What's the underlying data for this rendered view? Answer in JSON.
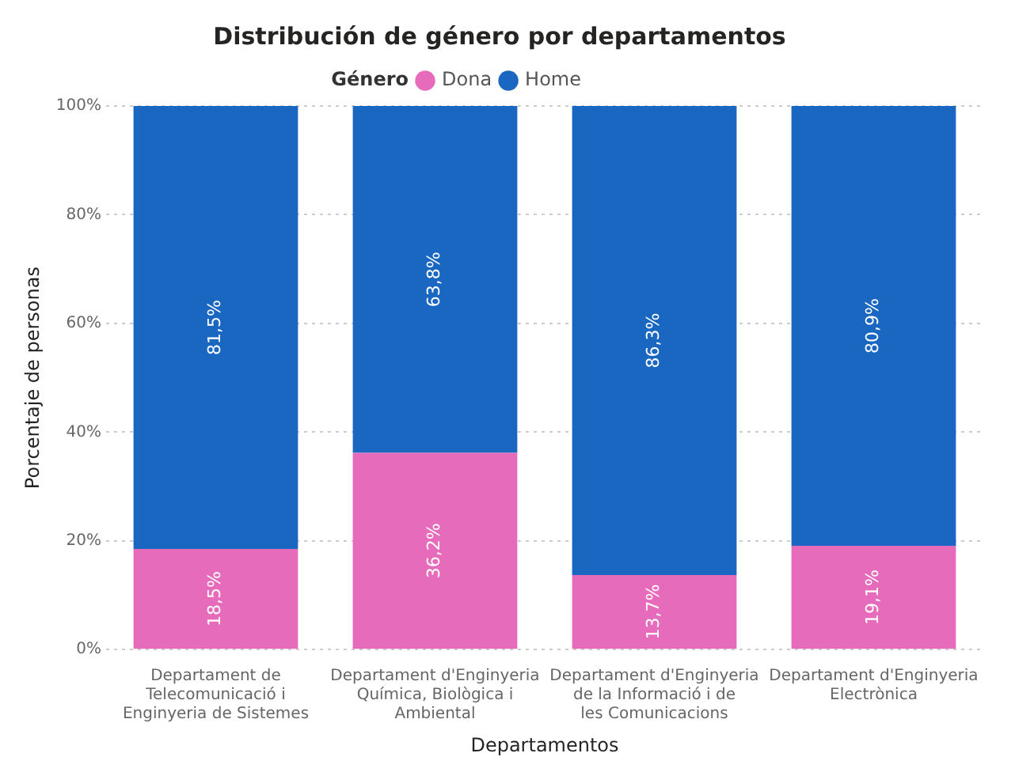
{
  "chart_data": {
    "type": "bar",
    "stacked": true,
    "title": "Distribución de género por departamentos",
    "xlabel": "Departamentos",
    "ylabel": "Porcentaje de personas",
    "legend_title": "Género",
    "legend": "top",
    "categories": [
      "Departament de Telecomunicació i Enginyeria de Sistemes",
      "Departament d'Enginyeria Química, Biològica i Ambiental",
      "Departament d'Enginyeria de la Informació i de les Comunicacions",
      "Departament d'Enginyeria Electrònica"
    ],
    "series": [
      {
        "name": "Dona",
        "color": "#e66bbb",
        "values": [
          18.5,
          36.2,
          13.7,
          19.1
        ],
        "value_labels": [
          "18,5%",
          "36,2%",
          "13,7%",
          "19,1%"
        ]
      },
      {
        "name": "Home",
        "color": "#1a67c2",
        "values": [
          81.5,
          63.8,
          86.3,
          80.9
        ],
        "value_labels": [
          "81,5%",
          "63,8%",
          "86,3%",
          "80,9%"
        ]
      }
    ],
    "ylim": [
      0,
      100
    ],
    "yticks": [
      {
        "value": 0,
        "label": "0%"
      },
      {
        "value": 20,
        "label": "20%"
      },
      {
        "value": 40,
        "label": "40%"
      },
      {
        "value": 60,
        "label": "60%"
      },
      {
        "value": 80,
        "label": "80%"
      },
      {
        "value": 100,
        "label": "100%"
      }
    ],
    "grid": "y"
  }
}
